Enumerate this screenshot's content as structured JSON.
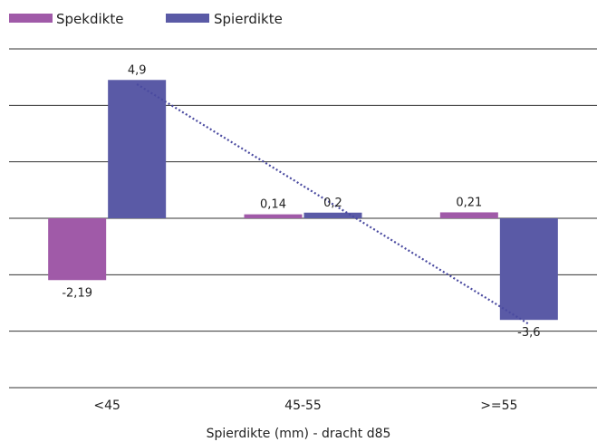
{
  "chart_data": {
    "type": "bar",
    "title": "",
    "xlabel": "Spierdikte (mm) - dracht d85",
    "ylabel": "",
    "categories": [
      "<45",
      "45-55",
      ">=55"
    ],
    "series": [
      {
        "name": "Spekdikte",
        "values": [
          -2.19,
          0.14,
          0.21
        ],
        "labels": [
          "-2,19",
          "0,14",
          "0,21"
        ],
        "color": "#a05aa8"
      },
      {
        "name": "Spierdikte",
        "values": [
          4.9,
          0.2,
          -3.6
        ],
        "labels": [
          "4,9",
          "0,2",
          "-3,6"
        ],
        "color": "#5a5aa6"
      }
    ],
    "trendline": {
      "series": "Spierdikte",
      "style": "dotted",
      "color": "#4a4aa0"
    },
    "ylim": [
      -6,
      6
    ],
    "gridlines": true,
    "y_tick_labels_shown": false,
    "legend": "top-left"
  }
}
